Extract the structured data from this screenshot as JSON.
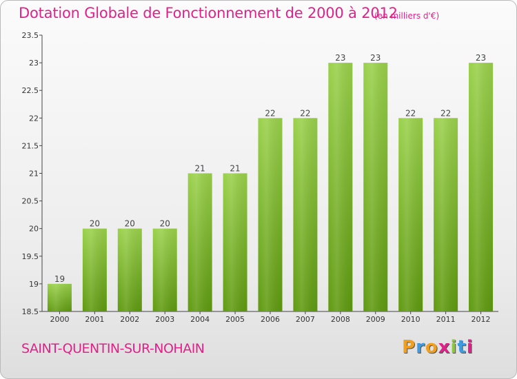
{
  "title": "Dotation Globale de Fonctionnement de 2000 à 2012",
  "subtitle": "(en milliers d'€)",
  "commune": "SAINT-QUENTIN-SUR-NOHAIN",
  "logo": {
    "letters": [
      "P",
      "r",
      "o",
      "x",
      "i",
      "t",
      "i"
    ]
  },
  "colors": {
    "bar_top": "#9ad14b",
    "bar_bottom": "#5f9a10",
    "accent": "#e0218a"
  },
  "chart_data": {
    "type": "bar",
    "categories": [
      "2000",
      "2001",
      "2002",
      "2003",
      "2004",
      "2005",
      "2006",
      "2007",
      "2008",
      "2009",
      "2010",
      "2011",
      "2012"
    ],
    "values": [
      19,
      20,
      20,
      20,
      21,
      21,
      22,
      22,
      23,
      23,
      22,
      22,
      23
    ],
    "data_labels": [
      "19",
      "20",
      "20",
      "20",
      "21",
      "21",
      "22",
      "22",
      "23",
      "23",
      "22",
      "22",
      "23"
    ],
    "yticks": [
      "18.5",
      "19",
      "19.5",
      "20",
      "20.5",
      "21",
      "21.5",
      "22",
      "22.5",
      "23",
      "23.5"
    ],
    "ylim": [
      18.5,
      23.5
    ],
    "grid": false
  }
}
